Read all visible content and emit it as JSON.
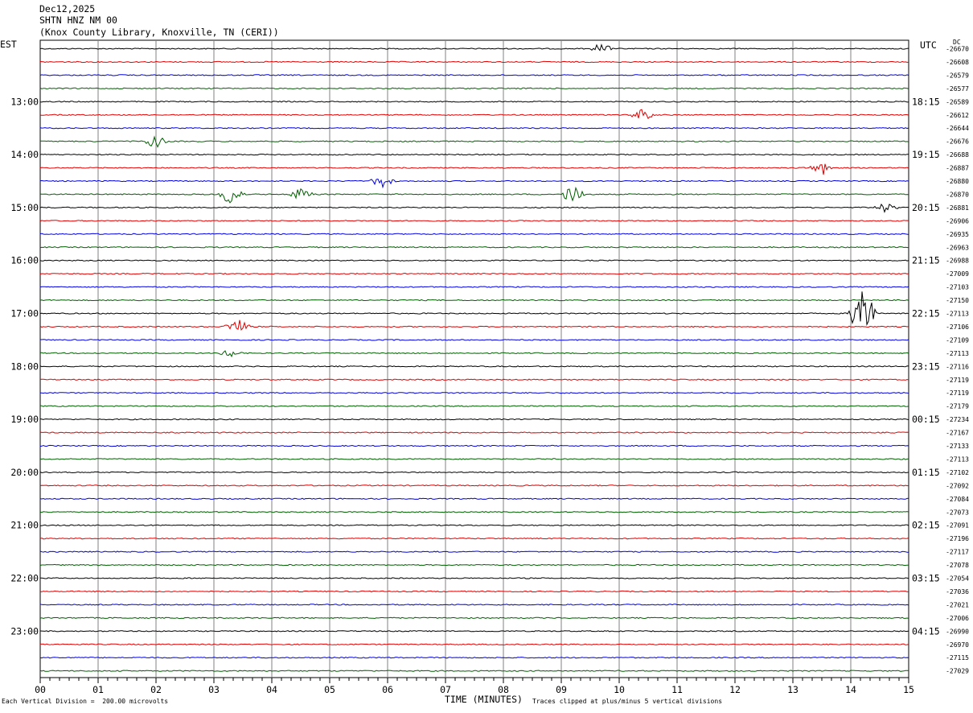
{
  "header": {
    "date": "Dec12,2025",
    "station": "SHTN HNZ NM 00",
    "location": "(Knox County Library, Knoxville, TN (CERI))"
  },
  "left_timezone": "EST",
  "right_timezone": "UTC",
  "dc_label": "DC",
  "footer": {
    "vertical_division": "Each Vertical Division =  200.00 microvolts",
    "xlabel": "TIME (MINUTES)",
    "clip_note": "Traces clipped at plus/minus 5 vertical divisions"
  },
  "colors": {
    "trace_cycle": [
      "#000000",
      "#e00000",
      "#0000e0",
      "#006000"
    ],
    "grid": "#808080"
  },
  "chart_data": {
    "type": "line",
    "title": "SHTN HNZ NM 00",
    "xlabel": "TIME (MINUTES)",
    "xlim": [
      0,
      15
    ],
    "x_ticks": [
      "00",
      "01",
      "02",
      "03",
      "04",
      "05",
      "06",
      "07",
      "08",
      "09",
      "10",
      "11",
      "12",
      "13",
      "14",
      "15"
    ],
    "traces_per_hour": 4,
    "est_hour_labels": [
      "13:00",
      "14:00",
      "15:00",
      "16:00",
      "17:00",
      "18:00",
      "19:00",
      "20:00",
      "21:00",
      "22:00",
      "23:00"
    ],
    "utc_hour_labels": [
      "18:15",
      "19:15",
      "20:15",
      "21:15",
      "22:15",
      "23:15",
      "00:15",
      "01:15",
      "02:15",
      "03:15",
      "04:15"
    ],
    "dc_offsets": [
      -26670,
      -26608,
      -26579,
      -26577,
      -26589,
      -26612,
      -26644,
      -26676,
      -26688,
      -26887,
      -26880,
      -26870,
      -26881,
      -26906,
      -26935,
      -26963,
      -26988,
      -27009,
      -27103,
      -27150,
      -27113,
      -27106,
      -27109,
      -27113,
      -27116,
      -27119,
      -27119,
      -27179,
      -27234,
      -27167,
      -27133,
      -27113,
      -27102,
      -27092,
      -27084,
      -27073,
      -27091,
      -27196,
      -27117,
      -27078,
      -27054,
      -27036,
      -27021,
      -27006,
      -26990,
      -26970,
      -27115,
      -27029
    ],
    "events": [
      {
        "trace": 0,
        "minute": 9.7,
        "amp": 0.4
      },
      {
        "trace": 5,
        "minute": 10.4,
        "amp": 0.5
      },
      {
        "trace": 7,
        "minute": 2.0,
        "amp": 0.5
      },
      {
        "trace": 9,
        "minute": 13.5,
        "amp": 0.7
      },
      {
        "trace": 10,
        "minute": 5.9,
        "amp": 0.6
      },
      {
        "trace": 11,
        "minute": 3.3,
        "amp": 0.9
      },
      {
        "trace": 11,
        "minute": 4.5,
        "amp": 0.5
      },
      {
        "trace": 11,
        "minute": 9.2,
        "amp": 0.8
      },
      {
        "trace": 12,
        "minute": 14.6,
        "amp": 0.4
      },
      {
        "trace": 20,
        "minute": 14.2,
        "amp": 2.6
      },
      {
        "trace": 21,
        "minute": 3.4,
        "amp": 0.7
      },
      {
        "trace": 23,
        "minute": 3.3,
        "amp": 0.3
      }
    ]
  }
}
